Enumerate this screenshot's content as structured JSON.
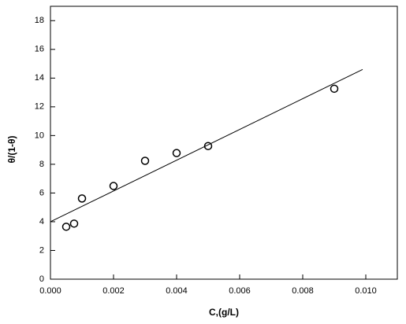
{
  "chart_data": {
    "type": "scatter",
    "x_label": "C,(g/L)",
    "y_label": "θ/(1-θ)",
    "xlim": [
      0,
      0.011
    ],
    "ylim": [
      0,
      19
    ],
    "xticks": [
      {
        "value": 0,
        "label": "0.000"
      },
      {
        "value": 0.002,
        "label": "0.002"
      },
      {
        "value": 0.004,
        "label": "0.004"
      },
      {
        "value": 0.006,
        "label": "0.006"
      },
      {
        "value": 0.008,
        "label": "0.008"
      },
      {
        "value": 0.01,
        "label": "0.010"
      }
    ],
    "yticks": [
      0,
      2,
      4,
      6,
      8,
      10,
      12,
      14,
      16,
      18
    ],
    "series": [
      {
        "mode": "markers",
        "color": "#000000",
        "x": [
          0.0005,
          0.00075,
          0.001,
          0.002,
          0.003,
          0.004,
          0.005,
          0.009
        ],
        "values": [
          3.65,
          3.87,
          5.62,
          6.49,
          8.24,
          8.78,
          9.27,
          13.26
        ]
      },
      {
        "mode": "line",
        "color": "#000000",
        "x": [
          0,
          0.0099
        ],
        "values": [
          4.0,
          14.6
        ]
      }
    ]
  }
}
